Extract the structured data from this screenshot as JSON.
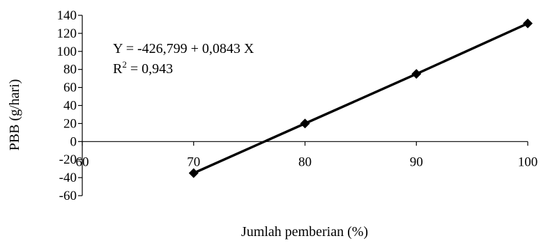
{
  "chart_data": {
    "type": "line",
    "title": "",
    "xlabel": "Jumlah pemberian (%)",
    "ylabel": "PBB (g/hari)",
    "xlim": [
      60,
      100
    ],
    "ylim": [
      -60,
      140
    ],
    "x_ticks": [
      "60",
      "70",
      "80",
      "90",
      "100"
    ],
    "y_ticks": [
      "140",
      "120",
      "100",
      "80",
      "60",
      "40",
      "20",
      "0",
      "-20",
      "-40",
      "-60"
    ],
    "grid": false,
    "series": [
      {
        "x": [
          70,
          80,
          90,
          100
        ],
        "values": [
          -35,
          20,
          75,
          131
        ],
        "marker": "diamond",
        "color": "#000000"
      }
    ],
    "annotations": {
      "equation": "Y = -426,799 + 0,0843 X",
      "r2_prefix": "R",
      "r2_sup": "2",
      "r2_suffix": " = 0,943"
    }
  }
}
